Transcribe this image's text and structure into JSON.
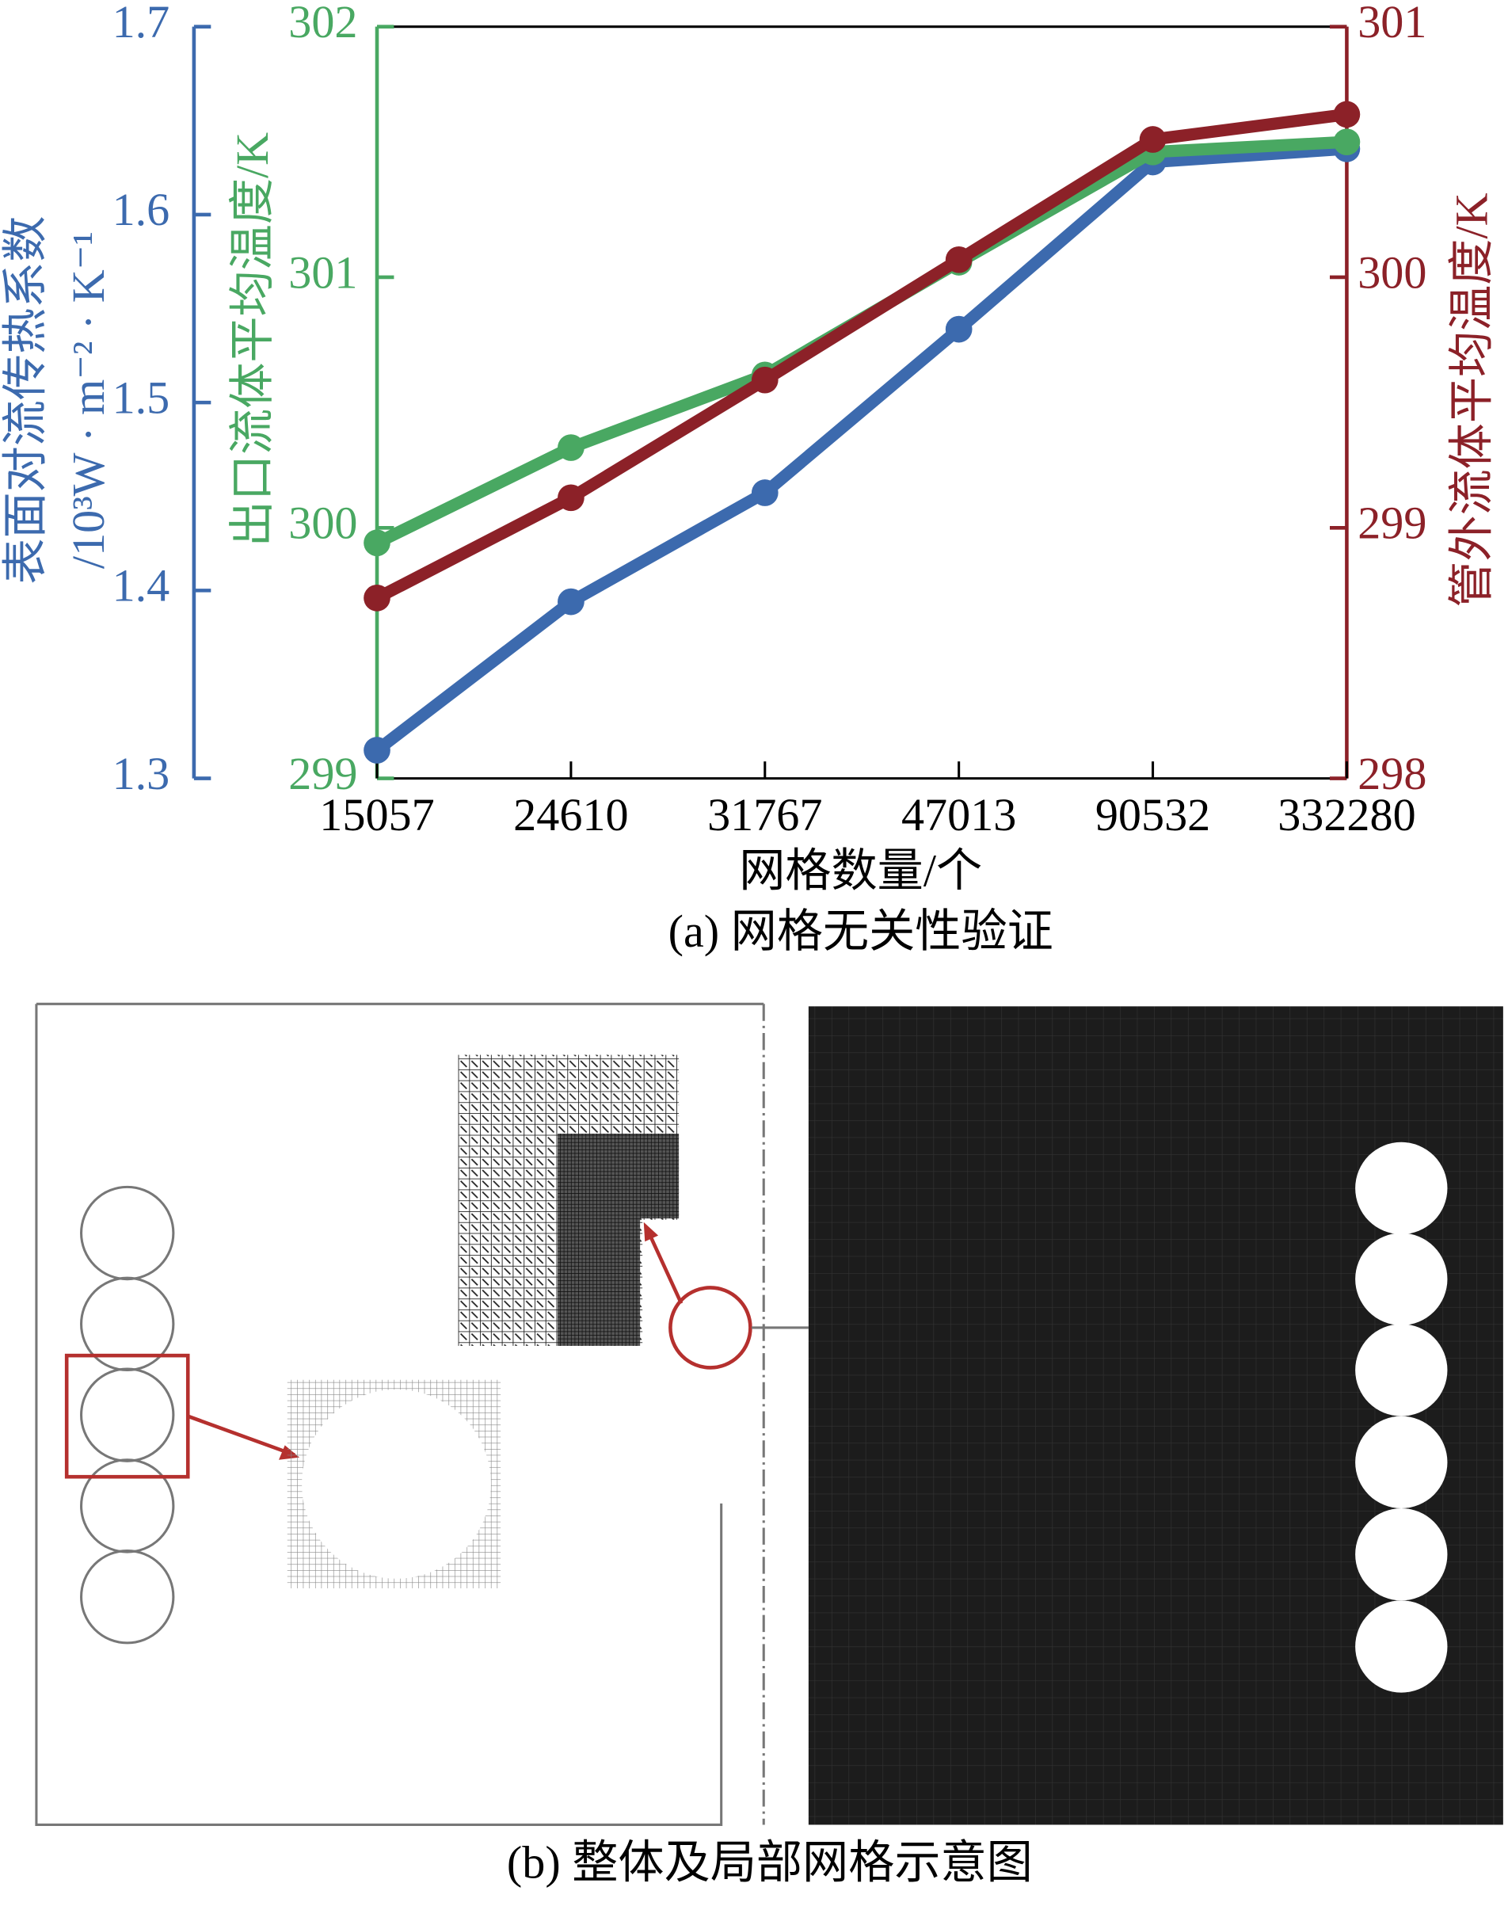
{
  "chart_data": {
    "type": "line",
    "categories": [
      "15057",
      "24610",
      "31767",
      "47013",
      "90532",
      "332280"
    ],
    "xlabel": "网格数量/个",
    "caption": "(a) 网格无关性验证",
    "ylabel": [
      "表面对流传热系数",
      "/10³W · m⁻² · K⁻¹"
    ],
    "y2label": "出口流体平均温度/K",
    "y3label": "管外流体平均温度/K",
    "ylim": [
      1.3,
      1.7
    ],
    "yticks": [
      1.3,
      1.4,
      1.5,
      1.6,
      1.7
    ],
    "ycolor": "#3c6aae",
    "y2lim": [
      299,
      302
    ],
    "y2ticks": [
      299,
      300,
      301,
      302
    ],
    "y2color": "#49a862",
    "y3lim": [
      298,
      301
    ],
    "y3ticks": [
      298,
      299,
      300,
      301
    ],
    "y3color": "#8c2128",
    "series": [
      {
        "color": "#3c6aae",
        "axis": "y",
        "values": [
          1.315,
          1.394,
          1.452,
          1.539,
          1.628,
          1.635
        ]
      },
      {
        "color": "#49a862",
        "axis": "y2",
        "values": [
          299.94,
          300.32,
          300.61,
          301.06,
          301.5,
          301.54
        ]
      },
      {
        "color": "#8c2128",
        "axis": "y3",
        "values": [
          298.72,
          299.12,
          299.59,
          300.07,
          300.55,
          300.65
        ]
      }
    ]
  },
  "figure_b": {
    "caption": "(b) 整体及局部网格示意图"
  }
}
